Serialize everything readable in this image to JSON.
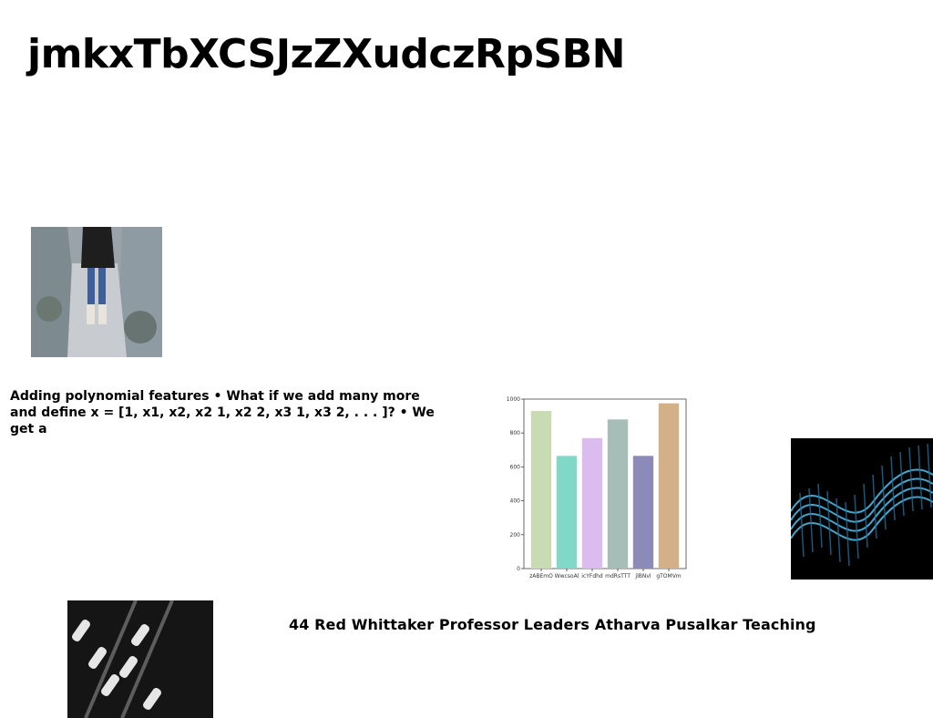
{
  "page": {
    "title": "jmkxTbXCSJzZXudczRpSBN",
    "paragraph": "Adding polynomial features • What if we add many more and define x = [1, x1, x2, x2 1, x2 2, x3 1, x3 2, . . . ]? • We get a",
    "caption": "44 Red Whittaker Professor Leaders Atharva Pusalkar Teaching"
  },
  "images": [
    {
      "subject": "person standing on a rocky snowy path"
    },
    {
      "subject": "abstract blue light waves on black background"
    },
    {
      "subject": "aerial view of boats docked at a marina"
    }
  ],
  "chart_data": {
    "type": "bar",
    "categories": [
      "zABEmO",
      "WwcsoAl",
      "icYFdhd",
      "mdRsTTT",
      "jlBNvl",
      "gTOMVm"
    ],
    "values": [
      930,
      665,
      770,
      880,
      665,
      975
    ],
    "colors": [
      "#c9dbb3",
      "#82d8c6",
      "#dcbcf0",
      "#a7bdb7",
      "#8b8ab8",
      "#d4b087"
    ],
    "ylim": [
      0,
      1000
    ],
    "yticks": [
      0,
      200,
      400,
      600,
      800,
      1000
    ],
    "title": "",
    "xlabel": "",
    "ylabel": "",
    "grid": false
  }
}
